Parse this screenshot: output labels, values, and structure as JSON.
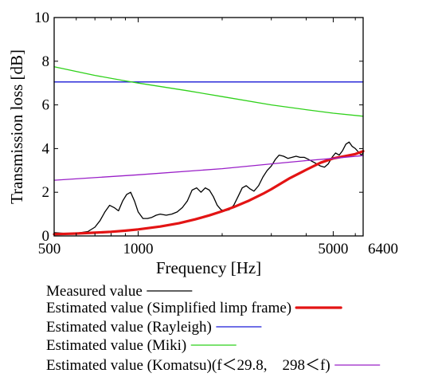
{
  "chart_data": {
    "type": "line",
    "title": "",
    "xlabel": "Frequency [Hz]",
    "ylabel": "Transmission loss [dB]",
    "xscale": "log",
    "xlim": [
      500,
      6400
    ],
    "ylim": [
      0,
      10
    ],
    "grid": false,
    "legend_position": "bottom",
    "x_ticks": [
      500,
      1000,
      5000,
      6400
    ],
    "x_tick_labels": [
      "500",
      "1000",
      "5000",
      "6400"
    ],
    "y_ticks": [
      0,
      2,
      4,
      6,
      8,
      10
    ],
    "y_tick_labels": [
      "0",
      "2",
      "4",
      "6",
      "8",
      "10"
    ],
    "series": [
      {
        "name": "Measured value",
        "color": "#000000",
        "x": [
          500,
          540,
          580,
          620,
          660,
          700,
          730,
          760,
          790,
          820,
          850,
          880,
          910,
          940,
          970,
          1000,
          1040,
          1080,
          1120,
          1160,
          1200,
          1260,
          1320,
          1380,
          1440,
          1500,
          1560,
          1620,
          1680,
          1740,
          1800,
          1860,
          1920,
          1980,
          2050,
          2120,
          2200,
          2280,
          2360,
          2440,
          2520,
          2600,
          2700,
          2800,
          2900,
          3000,
          3100,
          3200,
          3320,
          3440,
          3560,
          3680,
          3800,
          3940,
          4080,
          4220,
          4360,
          4500,
          4650,
          4800,
          4950,
          5100,
          5250,
          5400,
          5550,
          5700,
          5850,
          6000,
          6150,
          6300,
          6400
        ],
        "y": [
          0.15,
          0.12,
          0.1,
          0.15,
          0.2,
          0.4,
          0.7,
          1.1,
          1.4,
          1.3,
          1.15,
          1.6,
          1.9,
          2.0,
          1.6,
          1.1,
          0.8,
          0.8,
          0.85,
          0.95,
          1.0,
          0.95,
          1.0,
          1.1,
          1.3,
          1.6,
          2.1,
          2.2,
          2.0,
          2.2,
          2.1,
          1.8,
          1.4,
          1.2,
          1.15,
          1.2,
          1.4,
          1.8,
          2.2,
          2.3,
          2.15,
          2.05,
          2.3,
          2.7,
          3.0,
          3.2,
          3.5,
          3.7,
          3.65,
          3.55,
          3.6,
          3.65,
          3.6,
          3.6,
          3.5,
          3.4,
          3.3,
          3.2,
          3.15,
          3.3,
          3.6,
          3.8,
          3.7,
          3.9,
          4.2,
          4.3,
          4.1,
          4.0,
          3.85,
          3.7,
          3.8
        ]
      },
      {
        "name": "Estimated value (Simplified limp frame)",
        "color": "#e31414",
        "x": [
          500,
          600,
          700,
          800,
          900,
          1000,
          1200,
          1400,
          1600,
          1800,
          2000,
          2200,
          2500,
          2800,
          3000,
          3500,
          4000,
          4500,
          5000,
          5500,
          6000,
          6400
        ],
        "y": [
          0.08,
          0.11,
          0.15,
          0.19,
          0.24,
          0.3,
          0.43,
          0.58,
          0.76,
          0.94,
          1.13,
          1.32,
          1.62,
          1.93,
          2.14,
          2.65,
          3.03,
          3.35,
          3.55,
          3.65,
          3.75,
          3.88
        ]
      },
      {
        "name": "Estimated value (Rayleigh)",
        "color": "#1a1ad6",
        "x": [
          500,
          6400
        ],
        "y": [
          7.05,
          7.05
        ]
      },
      {
        "name": "Estimated value (Miki)",
        "color": "#2fd11a",
        "x": [
          500,
          700,
          900,
          1000,
          1500,
          2000,
          3000,
          4000,
          5000,
          6400
        ],
        "y": [
          7.75,
          7.35,
          7.1,
          7.0,
          6.65,
          6.38,
          6.0,
          5.78,
          5.62,
          5.48
        ]
      },
      {
        "name": "Estimated value (Komatsu)(f＜29.8,　298＜f)",
        "color": "#9a20c8",
        "x": [
          500,
          1000,
          2000,
          3000,
          4000,
          5000,
          6400
        ],
        "y": [
          2.55,
          2.8,
          3.08,
          3.3,
          3.45,
          3.55,
          3.68
        ]
      }
    ]
  }
}
